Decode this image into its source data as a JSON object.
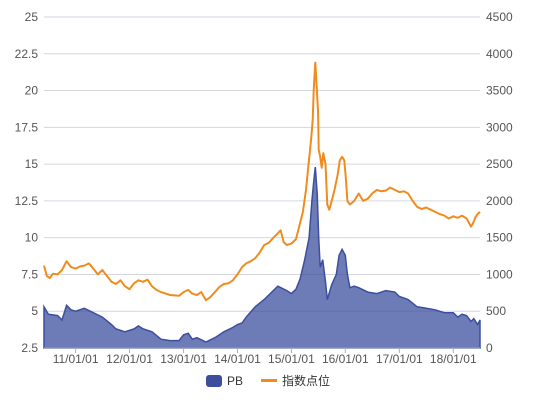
{
  "chart_data": {
    "type": "area+line",
    "x_ticks": [
      "11/01/01",
      "12/01/01",
      "13/01/01",
      "14/01/01",
      "15/01/01",
      "16/01/01",
      "17/01/01",
      "18/01/01"
    ],
    "x_range": [
      "2010/06/01",
      "2018/07/01"
    ],
    "y_left": {
      "ticks": [
        "25",
        "22.5",
        "20",
        "17.5",
        "15",
        "12.5",
        "10",
        "7.5",
        "5",
        "2.5"
      ],
      "range": [
        2.5,
        25
      ]
    },
    "y_right": {
      "ticks": [
        "4500",
        "4000",
        "3500",
        "3000",
        "2500",
        "2000",
        "1500",
        "1000",
        "500",
        "0"
      ],
      "range": [
        0,
        4500
      ]
    },
    "grid": true,
    "legend_position": "bottom-center",
    "series": [
      {
        "name": "PB",
        "kind": "area",
        "axis": "left",
        "color": "#3c4f9e",
        "points": [
          [
            "2010/06/01",
            5.3
          ],
          [
            "2010/07/01",
            4.8
          ],
          [
            "2010/09/01",
            4.7
          ],
          [
            "2010/10/01",
            4.4
          ],
          [
            "2010/11/01",
            5.4
          ],
          [
            "2010/12/01",
            5.1
          ],
          [
            "2011/01/01",
            5.0
          ],
          [
            "2011/03/01",
            5.2
          ],
          [
            "2011/05/01",
            4.9
          ],
          [
            "2011/07/01",
            4.6
          ],
          [
            "2011/09/01",
            4.1
          ],
          [
            "2011/10/01",
            3.8
          ],
          [
            "2011/12/01",
            3.6
          ],
          [
            "2012/02/01",
            3.8
          ],
          [
            "2012/03/01",
            4.0
          ],
          [
            "2012/04/01",
            3.8
          ],
          [
            "2012/06/01",
            3.6
          ],
          [
            "2012/08/01",
            3.1
          ],
          [
            "2012/10/01",
            3.0
          ],
          [
            "2012/12/01",
            3.0
          ],
          [
            "2013/01/01",
            3.4
          ],
          [
            "2013/02/01",
            3.5
          ],
          [
            "2013/03/01",
            3.1
          ],
          [
            "2013/04/01",
            3.2
          ],
          [
            "2013/06/01",
            2.9
          ],
          [
            "2013/08/01",
            3.2
          ],
          [
            "2013/10/01",
            3.6
          ],
          [
            "2013/12/01",
            3.9
          ],
          [
            "2014/01/01",
            4.1
          ],
          [
            "2014/02/01",
            4.2
          ],
          [
            "2014/03/01",
            4.6
          ],
          [
            "2014/05/01",
            5.3
          ],
          [
            "2014/07/01",
            5.8
          ],
          [
            "2014/09/01",
            6.4
          ],
          [
            "2014/10/01",
            6.7
          ],
          [
            "2014/12/01",
            6.4
          ],
          [
            "2015/01/01",
            6.2
          ],
          [
            "2015/02/01",
            6.5
          ],
          [
            "2015/03/01",
            7.2
          ],
          [
            "2015/04/01",
            8.5
          ],
          [
            "2015/05/01",
            10.0
          ],
          [
            "2015/05/20",
            12.5
          ],
          [
            "2015/06/01",
            13.8
          ],
          [
            "2015/06/12",
            14.8
          ],
          [
            "2015/06/25",
            13.0
          ],
          [
            "2015/07/05",
            10.0
          ],
          [
            "2015/07/15",
            8.0
          ],
          [
            "2015/08/01",
            8.5
          ],
          [
            "2015/08/20",
            7.0
          ],
          [
            "2015/09/01",
            5.8
          ],
          [
            "2015/10/01",
            6.8
          ],
          [
            "2015/11/01",
            7.5
          ],
          [
            "2015/11/20",
            8.8
          ],
          [
            "2015/12/10",
            9.2
          ],
          [
            "2016/01/01",
            8.8
          ],
          [
            "2016/01/15",
            7.5
          ],
          [
            "2016/02/01",
            6.6
          ],
          [
            "2016/03/01",
            6.7
          ],
          [
            "2016/04/01",
            6.6
          ],
          [
            "2016/06/01",
            6.3
          ],
          [
            "2016/08/01",
            6.2
          ],
          [
            "2016/10/01",
            6.4
          ],
          [
            "2016/12/01",
            6.3
          ],
          [
            "2017/01/01",
            6.0
          ],
          [
            "2017/03/01",
            5.8
          ],
          [
            "2017/05/01",
            5.3
          ],
          [
            "2017/07/01",
            5.2
          ],
          [
            "2017/09/01",
            5.1
          ],
          [
            "2017/11/01",
            4.9
          ],
          [
            "2018/01/01",
            4.9
          ],
          [
            "2018/02/01",
            4.6
          ],
          [
            "2018/03/01",
            4.8
          ],
          [
            "2018/04/01",
            4.7
          ],
          [
            "2018/05/01",
            4.3
          ],
          [
            "2018/05/20",
            4.5
          ],
          [
            "2018/06/15",
            4.1
          ],
          [
            "2018/07/01",
            4.4
          ]
        ]
      },
      {
        "name": "指数点位",
        "kind": "line",
        "axis": "right",
        "color": "#f08c1e",
        "points": [
          [
            "2010/06/01",
            1120
          ],
          [
            "2010/06/20",
            980
          ],
          [
            "2010/07/10",
            950
          ],
          [
            "2010/08/01",
            1010
          ],
          [
            "2010/09/01",
            1000
          ],
          [
            "2010/10/01",
            1060
          ],
          [
            "2010/11/01",
            1180
          ],
          [
            "2010/12/01",
            1100
          ],
          [
            "2011/01/01",
            1080
          ],
          [
            "2011/02/01",
            1110
          ],
          [
            "2011/03/01",
            1120
          ],
          [
            "2011/04/01",
            1150
          ],
          [
            "2011/05/01",
            1080
          ],
          [
            "2011/06/01",
            1000
          ],
          [
            "2011/07/01",
            1060
          ],
          [
            "2011/08/01",
            980
          ],
          [
            "2011/09/01",
            900
          ],
          [
            "2011/10/01",
            870
          ],
          [
            "2011/11/01",
            920
          ],
          [
            "2011/12/01",
            840
          ],
          [
            "2012/01/01",
            800
          ],
          [
            "2012/02/01",
            880
          ],
          [
            "2012/03/01",
            920
          ],
          [
            "2012/04/01",
            900
          ],
          [
            "2012/05/01",
            930
          ],
          [
            "2012/06/01",
            840
          ],
          [
            "2012/07/01",
            790
          ],
          [
            "2012/08/01",
            760
          ],
          [
            "2012/09/01",
            740
          ],
          [
            "2012/10/01",
            720
          ],
          [
            "2012/12/01",
            710
          ],
          [
            "2013/01/01",
            760
          ],
          [
            "2013/02/01",
            790
          ],
          [
            "2013/03/01",
            740
          ],
          [
            "2013/04/01",
            720
          ],
          [
            "2013/05/01",
            760
          ],
          [
            "2013/06/01",
            650
          ],
          [
            "2013/07/01",
            690
          ],
          [
            "2013/08/01",
            760
          ],
          [
            "2013/09/01",
            830
          ],
          [
            "2013/10/01",
            870
          ],
          [
            "2013/11/01",
            880
          ],
          [
            "2013/12/01",
            920
          ],
          [
            "2014/01/01",
            1000
          ],
          [
            "2014/02/01",
            1100
          ],
          [
            "2014/03/01",
            1150
          ],
          [
            "2014/04/01",
            1180
          ],
          [
            "2014/05/01",
            1220
          ],
          [
            "2014/06/01",
            1300
          ],
          [
            "2014/07/01",
            1400
          ],
          [
            "2014/08/01",
            1430
          ],
          [
            "2014/09/01",
            1500
          ],
          [
            "2014/10/01",
            1560
          ],
          [
            "2014/10/20",
            1600
          ],
          [
            "2014/11/10",
            1440
          ],
          [
            "2014/12/01",
            1400
          ],
          [
            "2015/01/01",
            1420
          ],
          [
            "2015/02/01",
            1480
          ],
          [
            "2015/03/01",
            1700
          ],
          [
            "2015/03/20",
            1850
          ],
          [
            "2015/04/10",
            2150
          ],
          [
            "2015/04/25",
            2450
          ],
          [
            "2015/05/15",
            2850
          ],
          [
            "2015/05/25",
            3100
          ],
          [
            "2015/06/01",
            3500
          ],
          [
            "2015/06/08",
            3750
          ],
          [
            "2015/06/12",
            3880
          ],
          [
            "2015/06/20",
            3600
          ],
          [
            "2015/07/01",
            3200
          ],
          [
            "2015/07/05",
            2700
          ],
          [
            "2015/07/15",
            2600
          ],
          [
            "2015/07/25",
            2450
          ],
          [
            "2015/08/05",
            2650
          ],
          [
            "2015/08/20",
            2500
          ],
          [
            "2015/09/01",
            1950
          ],
          [
            "2015/09/15",
            1880
          ],
          [
            "2015/10/01",
            2000
          ],
          [
            "2015/10/20",
            2150
          ],
          [
            "2015/11/10",
            2350
          ],
          [
            "2015/11/25",
            2550
          ],
          [
            "2015/12/10",
            2600
          ],
          [
            "2015/12/25",
            2550
          ],
          [
            "2016/01/05",
            2300
          ],
          [
            "2016/01/15",
            2000
          ],
          [
            "2016/02/01",
            1950
          ],
          [
            "2016/03/01",
            2000
          ],
          [
            "2016/04/01",
            2100
          ],
          [
            "2016/05/01",
            2000
          ],
          [
            "2016/06/01",
            2030
          ],
          [
            "2016/07/01",
            2100
          ],
          [
            "2016/08/01",
            2150
          ],
          [
            "2016/09/01",
            2130
          ],
          [
            "2016/10/01",
            2140
          ],
          [
            "2016/11/01",
            2180
          ],
          [
            "2016/12/01",
            2150
          ],
          [
            "2017/01/01",
            2120
          ],
          [
            "2017/02/01",
            2130
          ],
          [
            "2017/03/01",
            2100
          ],
          [
            "2017/04/01",
            2000
          ],
          [
            "2017/05/01",
            1920
          ],
          [
            "2017/06/01",
            1890
          ],
          [
            "2017/07/01",
            1910
          ],
          [
            "2017/08/01",
            1880
          ],
          [
            "2017/09/01",
            1850
          ],
          [
            "2017/10/01",
            1820
          ],
          [
            "2017/11/01",
            1800
          ],
          [
            "2017/12/01",
            1760
          ],
          [
            "2018/01/01",
            1790
          ],
          [
            "2018/02/01",
            1770
          ],
          [
            "2018/03/01",
            1800
          ],
          [
            "2018/04/01",
            1760
          ],
          [
            "2018/05/01",
            1650
          ],
          [
            "2018/05/15",
            1700
          ],
          [
            "2018/06/01",
            1780
          ],
          [
            "2018/06/15",
            1820
          ],
          [
            "2018/07/01",
            1850
          ]
        ]
      }
    ]
  }
}
